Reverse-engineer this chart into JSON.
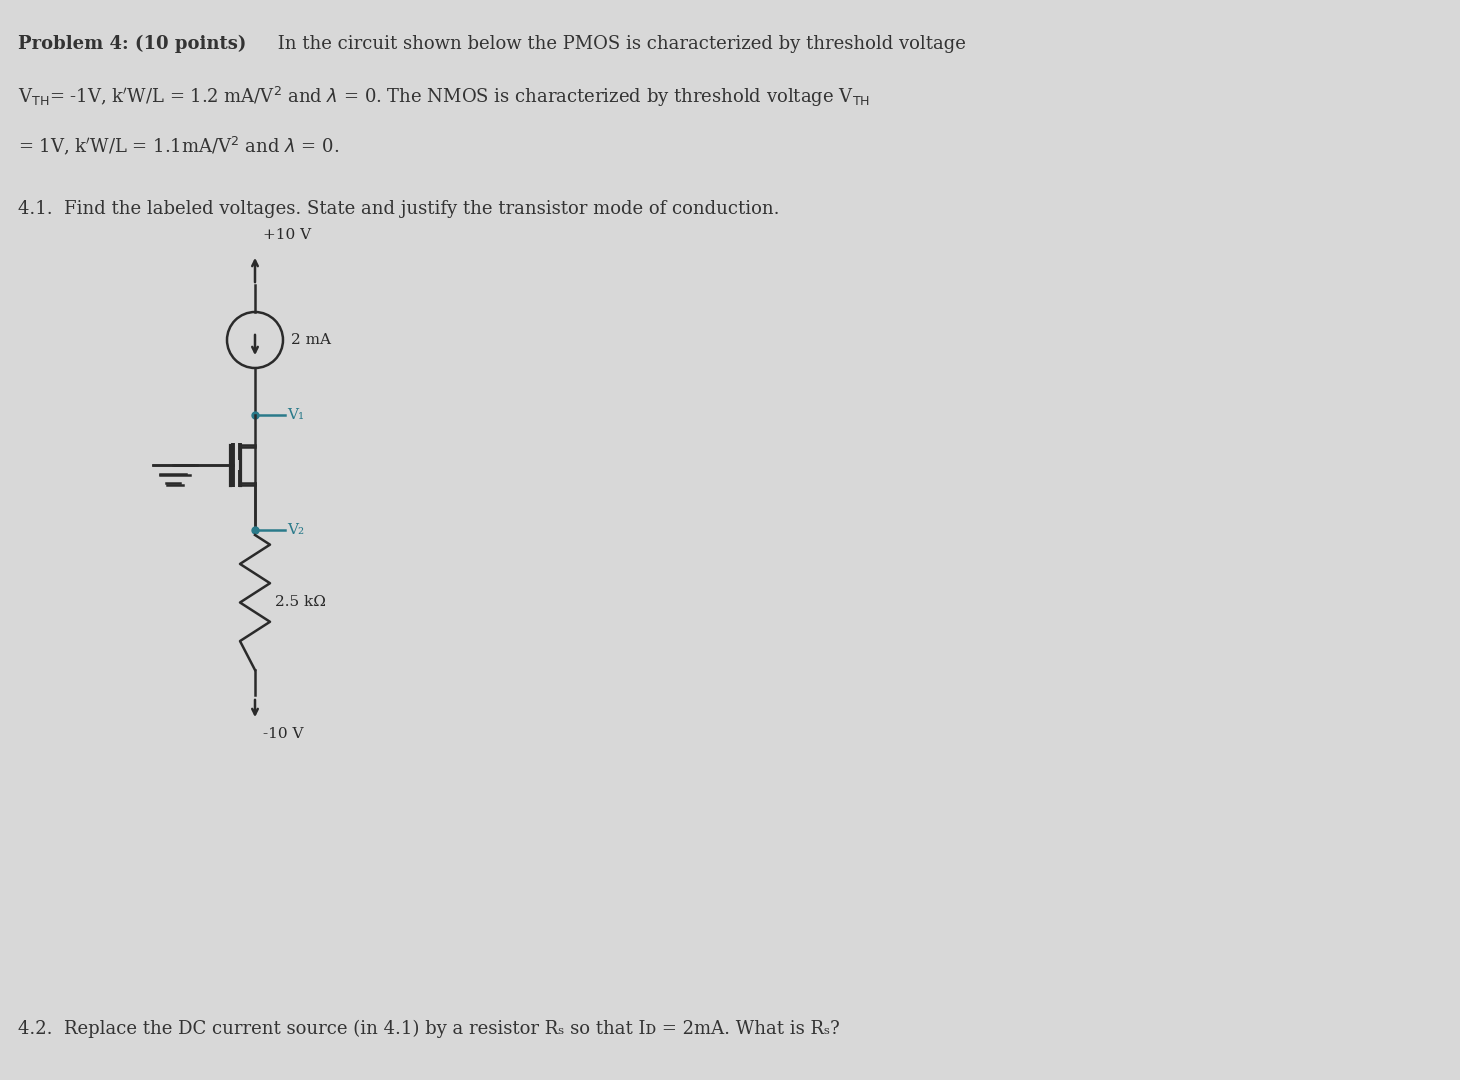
{
  "bg_color": "#d8d8d8",
  "text_color": "#333333",
  "circuit_color": "#2a2a2a",
  "teal_color": "#2a7a8a",
  "title_bold": "Problem 4: (10 points)",
  "title_rest": " In the circuit shown below the PMOS is characterized by threshold voltage",
  "line2": "VᴛH= -1V, kʼW/L = 1.2 mA/V² and λ = 0. The NMOS is characterized by threshold voltage VᴛH",
  "line3": "= 1V, kʼW/L = 1.1mA/V² and λ = 0.",
  "section41": "4.1.  Find the labeled voltages. State and justify the transistor mode of conduction.",
  "section42": "4.2.  Replace the DC current source (in 4.1) by a resistor Rₛ so that Iᴅ = 2mA. What is Rₛ?",
  "vplus_label": "+10 V",
  "vminus_label": "-10 V",
  "current_label": "2 mA",
  "resistor_label": "2.5 kΩ",
  "v1_label": "V₁",
  "v2_label": "V₂"
}
